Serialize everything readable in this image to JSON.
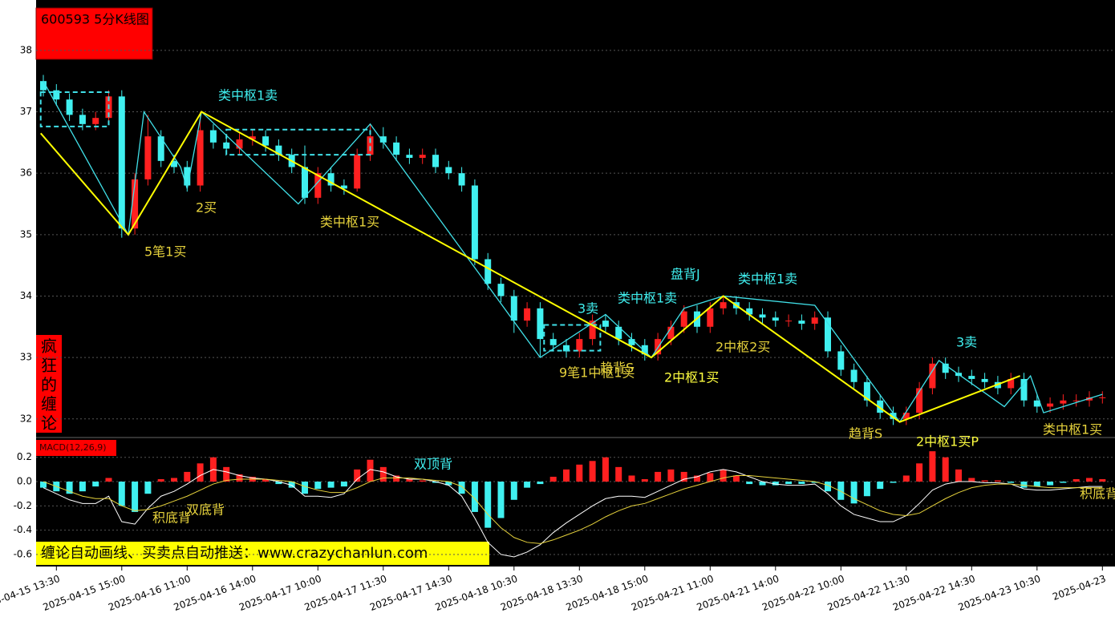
{
  "chart_data": [
    {
      "type": "candlestick",
      "title": "600593 5分K线图",
      "side_label": "疯狂的缠论",
      "categories": [
        null,
        "2025-04-15 13:30",
        null,
        null,
        null,
        null,
        "2025-04-15 15:00",
        null,
        null,
        null,
        null,
        "2025-04-16 11:00",
        null,
        null,
        null,
        null,
        "2025-04-16 14:00",
        null,
        null,
        null,
        null,
        "2025-04-17 10:00",
        null,
        null,
        null,
        null,
        "2025-04-17 11:30",
        null,
        null,
        null,
        null,
        "2025-04-17 14:30",
        null,
        null,
        null,
        null,
        "2025-04-18 10:30",
        null,
        null,
        null,
        null,
        "2025-04-18 13:30",
        null,
        null,
        null,
        null,
        "2025-04-18 15:00",
        null,
        null,
        null,
        null,
        "2025-04-21 11:00",
        null,
        null,
        null,
        null,
        "2025-04-21 14:00",
        null,
        null,
        null,
        null,
        "2025-04-22 10:00",
        null,
        null,
        null,
        null,
        "2025-04-22 11:30",
        null,
        null,
        null,
        null,
        "2025-04-22 14:30",
        null,
        null,
        null,
        null,
        "2025-04-23 10:30",
        null,
        null,
        null,
        null,
        "2025-04-23"
      ],
      "open": [
        37.5,
        37.35,
        37.2,
        36.95,
        36.8,
        36.9,
        37.25,
        35.1,
        35.9,
        36.6,
        36.2,
        36.1,
        35.8,
        36.7,
        36.5,
        36.4,
        36.55,
        36.6,
        36.45,
        36.3,
        36.1,
        35.6,
        36.0,
        35.8,
        35.75,
        36.3,
        36.6,
        36.5,
        36.3,
        36.25,
        36.3,
        36.1,
        36.0,
        35.8,
        34.6,
        34.2,
        34.0,
        33.6,
        33.8,
        33.3,
        33.2,
        33.1,
        33.3,
        33.6,
        33.5,
        33.3,
        33.2,
        33.05,
        33.3,
        33.5,
        33.75,
        33.5,
        33.8,
        33.9,
        33.8,
        33.7,
        33.65,
        33.6,
        33.6,
        33.55,
        33.65,
        33.1,
        32.8,
        32.6,
        32.3,
        32.1,
        32.0,
        32.1,
        32.5,
        32.9,
        32.75,
        32.7,
        32.65,
        32.6,
        32.5,
        32.65,
        32.3,
        32.2,
        32.25,
        32.3,
        32.3,
        32.35
      ],
      "high": [
        37.6,
        37.45,
        37.3,
        37.05,
        37.0,
        37.35,
        37.35,
        36.0,
        36.95,
        36.7,
        36.3,
        36.2,
        37.0,
        36.8,
        36.6,
        36.65,
        36.7,
        36.7,
        36.55,
        36.4,
        36.45,
        36.1,
        36.1,
        35.9,
        36.4,
        36.8,
        36.75,
        36.6,
        36.4,
        36.4,
        36.4,
        36.2,
        36.1,
        35.9,
        34.7,
        34.3,
        34.1,
        33.9,
        33.9,
        33.4,
        33.3,
        33.4,
        33.7,
        33.7,
        33.6,
        33.4,
        33.3,
        33.4,
        33.6,
        33.85,
        33.85,
        33.9,
        34.0,
        34.0,
        33.9,
        33.8,
        33.75,
        33.7,
        33.7,
        33.75,
        33.75,
        33.2,
        32.9,
        32.7,
        32.4,
        32.2,
        32.2,
        32.6,
        33.0,
        33.0,
        32.85,
        32.8,
        32.75,
        32.7,
        32.75,
        32.75,
        32.4,
        32.35,
        32.4,
        32.4,
        32.45,
        32.45
      ],
      "low": [
        37.25,
        37.1,
        36.85,
        36.7,
        36.7,
        36.8,
        34.95,
        35.0,
        35.8,
        36.1,
        36.0,
        35.7,
        35.7,
        36.4,
        36.3,
        36.3,
        36.45,
        36.35,
        36.2,
        36.0,
        35.5,
        35.5,
        35.7,
        35.65,
        35.7,
        36.2,
        36.4,
        36.2,
        36.15,
        36.15,
        36.0,
        35.9,
        35.7,
        34.5,
        34.1,
        33.9,
        33.4,
        33.5,
        33.0,
        33.1,
        33.0,
        33.0,
        33.2,
        33.4,
        33.2,
        33.1,
        32.95,
        32.95,
        33.2,
        33.4,
        33.4,
        33.4,
        33.7,
        33.7,
        33.6,
        33.55,
        33.5,
        33.5,
        33.45,
        33.45,
        33.0,
        32.7,
        32.5,
        32.2,
        32.0,
        31.9,
        31.9,
        32.0,
        32.4,
        32.65,
        32.6,
        32.55,
        32.5,
        32.4,
        32.4,
        32.2,
        32.1,
        32.1,
        32.15,
        32.2,
        32.2,
        32.25
      ],
      "close": [
        37.35,
        37.2,
        36.95,
        36.8,
        36.9,
        37.25,
        35.1,
        35.9,
        36.6,
        36.2,
        36.1,
        35.8,
        36.7,
        36.5,
        36.4,
        36.55,
        36.6,
        36.45,
        36.3,
        36.1,
        35.6,
        36.0,
        35.8,
        35.75,
        36.3,
        36.6,
        36.5,
        36.3,
        36.25,
        36.3,
        36.1,
        36.0,
        35.8,
        34.6,
        34.2,
        34.0,
        33.6,
        33.8,
        33.3,
        33.2,
        33.1,
        33.3,
        33.6,
        33.5,
        33.3,
        33.2,
        33.05,
        33.3,
        33.5,
        33.75,
        33.5,
        33.8,
        33.9,
        33.8,
        33.7,
        33.65,
        33.6,
        33.6,
        33.55,
        33.65,
        33.1,
        32.8,
        32.6,
        32.3,
        32.1,
        32.0,
        32.1,
        32.5,
        32.9,
        32.75,
        32.7,
        32.65,
        32.6,
        32.5,
        32.65,
        32.3,
        32.2,
        32.25,
        32.3,
        32.3,
        32.35,
        32.35
      ],
      "up_color": "#ff2020",
      "down_color": "#40f0f0",
      "ylim": [
        31.71,
        38.82
      ],
      "yticks": [
        32,
        33,
        34,
        35,
        36,
        37,
        38
      ],
      "grid": true,
      "strokes": {
        "color": "#40e0e8",
        "x": [
          0,
          6.5,
          7.7,
          10.5,
          11,
          12.1,
          19.5,
          25,
          38,
          43,
          46.5,
          49,
          52,
          59,
          65.5,
          68.5,
          73.5,
          75.5,
          76.5,
          81
        ],
        "values": [
          37.5,
          35.0,
          37.0,
          36.1,
          35.75,
          37.0,
          35.5,
          36.8,
          33.0,
          33.7,
          33.0,
          33.8,
          34.0,
          33.85,
          31.95,
          32.95,
          32.2,
          32.7,
          32.1,
          32.4
        ]
      },
      "segments": {
        "color": "#ffff00",
        "x": [
          -0.2,
          6.5,
          12.1,
          46.5,
          52,
          65.5,
          74.7
        ],
        "values": [
          36.65,
          35.0,
          37.0,
          33.0,
          34.0,
          31.95,
          32.7
        ]
      },
      "zones": {
        "color": "#40e0e8",
        "items": [
          {
            "x": [
              -0.2,
              5
            ],
            "values": [
              37.32,
              36.76
            ]
          },
          {
            "x": [
              14,
              25
            ],
            "values": [
              36.71,
              36.3
            ]
          },
          {
            "x": [
              38.3,
              42.6
            ],
            "values": [
              33.53,
              33.11
            ]
          }
        ]
      },
      "annotations": [
        {
          "text": "类中枢1卖",
          "color": "#40f0f0"
        },
        {
          "text": "2买",
          "color": "#e6d23c"
        },
        {
          "text": "5笔1买",
          "color": "#e6d23c"
        },
        {
          "text": "类中枢1买",
          "color": "#e6d23c"
        },
        {
          "text": "3卖",
          "color": "#40f0f0"
        },
        {
          "text": "类中枢1卖",
          "color": "#40f0f0"
        },
        {
          "text": "盘背J",
          "color": "#40f0f0"
        },
        {
          "text": "类中枢1卖",
          "color": "#40f0f0"
        },
        {
          "text": "2中枢2买",
          "color": "#e6d23c"
        },
        {
          "text": "9笔1中枢1买",
          "color": "#e6d23c"
        },
        {
          "text": "趋背S",
          "color": "#e6d23c"
        },
        {
          "text": "2中枢1买",
          "color": "#ffff40"
        },
        {
          "text": "3卖",
          "color": "#40f0f0"
        },
        {
          "text": "趋背S",
          "color": "#e6d23c"
        },
        {
          "text": "2中枢1买P",
          "color": "#ffff40"
        },
        {
          "text": "类中枢1买",
          "color": "#e6d23c"
        }
      ]
    },
    {
      "type": "macd",
      "title": "MACD(12,26,9)",
      "banner": "缠论自动画线、买卖点自动推送：www.crazychanlun.com",
      "ylim": [
        -0.686,
        0.35
      ],
      "yticks": [
        0.2,
        {
          "value": 0,
          "label": "0.0"
        },
        -0.2,
        -0.4,
        -0.6
      ],
      "up_color": "#ff2020",
      "down_color": "#40f0f0",
      "histogram": [
        -0.05,
        -0.08,
        -0.1,
        -0.08,
        -0.04,
        0.03,
        -0.2,
        -0.25,
        -0.1,
        0.02,
        0.03,
        0.08,
        0.15,
        0.2,
        0.12,
        0.06,
        0.04,
        0.02,
        -0.02,
        -0.05,
        -0.1,
        -0.06,
        -0.05,
        -0.04,
        0.1,
        0.18,
        0.12,
        0.05,
        0.02,
        0.01,
        -0.01,
        -0.03,
        -0.1,
        -0.25,
        -0.38,
        -0.3,
        -0.15,
        -0.05,
        -0.02,
        0.04,
        0.1,
        0.14,
        0.17,
        0.2,
        0.12,
        0.05,
        0.02,
        0.08,
        0.1,
        0.08,
        0.05,
        0.07,
        0.1,
        0.05,
        -0.02,
        -0.03,
        -0.03,
        -0.02,
        -0.02,
        -0.01,
        -0.08,
        -0.15,
        -0.18,
        -0.12,
        -0.06,
        -0.01,
        0.05,
        0.15,
        0.25,
        0.2,
        0.1,
        0.03,
        0.01,
        0.01,
        -0.01,
        -0.05,
        -0.04,
        -0.03,
        -0.01,
        0.02,
        0.03,
        0.02
      ],
      "dif": {
        "color": "#ffffff",
        "values": [
          -0.05,
          -0.1,
          -0.15,
          -0.18,
          -0.18,
          -0.12,
          -0.33,
          -0.35,
          -0.22,
          -0.12,
          -0.08,
          -0.02,
          0.05,
          0.1,
          0.08,
          0.05,
          0.03,
          0.02,
          0.0,
          -0.03,
          -0.12,
          -0.12,
          -0.13,
          -0.1,
          0.02,
          0.1,
          0.08,
          0.04,
          0.02,
          0.02,
          0.0,
          -0.03,
          -0.12,
          -0.3,
          -0.5,
          -0.6,
          -0.62,
          -0.58,
          -0.52,
          -0.42,
          -0.34,
          -0.27,
          -0.2,
          -0.14,
          -0.12,
          -0.12,
          -0.13,
          -0.08,
          -0.03,
          0.02,
          0.04,
          0.08,
          0.1,
          0.08,
          0.04,
          0.0,
          -0.02,
          -0.03,
          -0.03,
          -0.02,
          -0.1,
          -0.2,
          -0.27,
          -0.3,
          -0.33,
          -0.33,
          -0.28,
          -0.18,
          -0.07,
          -0.02,
          0.0,
          0.0,
          -0.01,
          -0.01,
          -0.02,
          -0.06,
          -0.07,
          -0.07,
          -0.06,
          -0.05,
          -0.04,
          -0.04
        ]
      },
      "dea": {
        "color": "#e6d23c",
        "values": [
          0.0,
          -0.04,
          -0.08,
          -0.12,
          -0.14,
          -0.14,
          -0.2,
          -0.24,
          -0.23,
          -0.2,
          -0.16,
          -0.12,
          -0.07,
          -0.02,
          0.01,
          0.02,
          0.02,
          0.02,
          0.01,
          0.0,
          -0.04,
          -0.07,
          -0.09,
          -0.09,
          -0.05,
          0.0,
          0.03,
          0.03,
          0.03,
          0.02,
          0.01,
          0.0,
          -0.04,
          -0.14,
          -0.27,
          -0.38,
          -0.46,
          -0.5,
          -0.51,
          -0.48,
          -0.44,
          -0.4,
          -0.35,
          -0.29,
          -0.24,
          -0.2,
          -0.18,
          -0.14,
          -0.1,
          -0.06,
          -0.03,
          0.0,
          0.03,
          0.05,
          0.05,
          0.04,
          0.03,
          0.02,
          0.01,
          0.0,
          -0.03,
          -0.08,
          -0.14,
          -0.19,
          -0.24,
          -0.27,
          -0.28,
          -0.26,
          -0.2,
          -0.14,
          -0.09,
          -0.05,
          -0.03,
          -0.02,
          -0.02,
          -0.03,
          -0.04,
          -0.05,
          -0.05,
          -0.05,
          -0.05,
          -0.05
        ]
      },
      "annotations": [
        {
          "text": "双顶背",
          "color": "#40f0f0"
        },
        {
          "text": "积底背",
          "color": "#e6d23c"
        },
        {
          "text": "双底背",
          "color": "#e6d23c"
        },
        {
          "text": "积底背",
          "color": "#e6d23c"
        }
      ]
    }
  ]
}
